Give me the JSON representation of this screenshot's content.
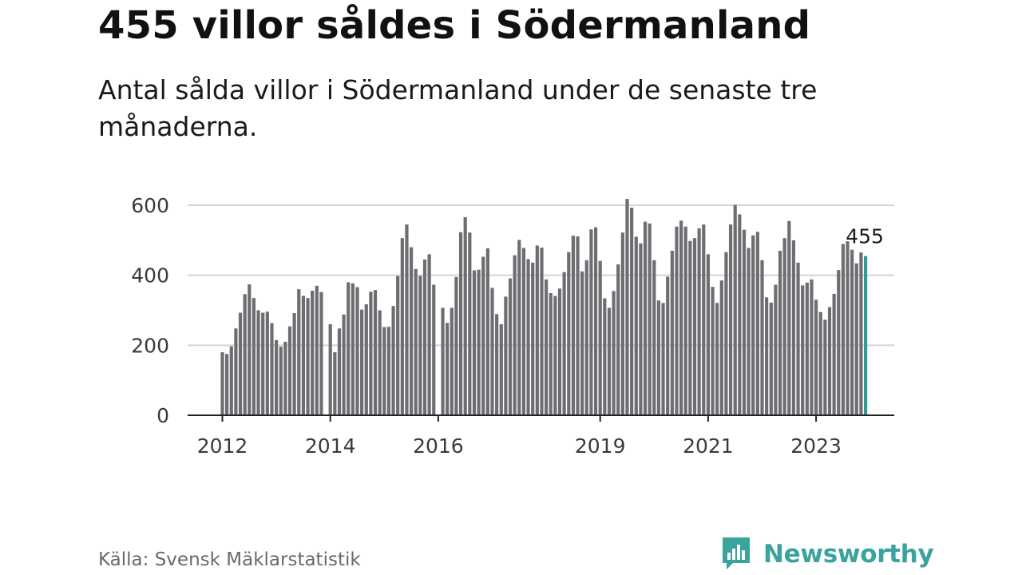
{
  "title": "455 villor såldes i Södermanland",
  "subtitle": "Antal sålda villor i Södermanland under de senaste tre månaderna.",
  "source": "Källa: Svensk Mäklarstatistik",
  "brand": {
    "name": "Newsworthy",
    "color": "#3aa39e",
    "icon": "newsworthy-logo-icon"
  },
  "colors": {
    "bar": "#6e6d72",
    "highlight": "#2a9d96",
    "grid": "#d4d4d4",
    "axis": "#222222"
  },
  "chart_data": {
    "type": "bar",
    "title": "455 villor såldes i Södermanland",
    "subtitle": "Antal sålda villor i Södermanland under de senaste tre månaderna.",
    "xlabel": "",
    "ylabel": "",
    "ylim": [
      0,
      620
    ],
    "yticks": [
      0,
      200,
      400,
      600
    ],
    "ytick_labels": [
      "0",
      "200",
      "400",
      "600"
    ],
    "xticks": [
      {
        "year": 2012,
        "label": "2012"
      },
      {
        "year": 2014,
        "label": "2014"
      },
      {
        "year": 2016,
        "label": "2016"
      },
      {
        "year": 2019,
        "label": "2019"
      },
      {
        "year": 2021,
        "label": "2021"
      },
      {
        "year": 2023,
        "label": "2023"
      }
    ],
    "grid": true,
    "start": "2012-01",
    "end": "2023-12",
    "gaps": [
      "2013-12",
      "2016-01"
    ],
    "values": [
      180,
      175,
      197,
      248,
      293,
      346,
      374,
      335,
      300,
      293,
      296,
      263,
      215,
      196,
      210,
      254,
      292,
      360,
      341,
      335,
      356,
      370,
      352,
      260,
      180,
      248,
      288,
      380,
      377,
      366,
      302,
      317,
      353,
      358,
      300,
      252,
      253,
      312,
      398,
      506,
      545,
      480,
      418,
      398,
      445,
      460,
      373,
      307,
      264,
      307,
      395,
      523,
      566,
      522,
      414,
      416,
      453,
      477,
      364,
      289,
      260,
      339,
      391,
      457,
      501,
      478,
      446,
      436,
      485,
      479,
      388,
      349,
      341,
      362,
      409,
      466,
      513,
      511,
      411,
      443,
      531,
      537,
      441,
      334,
      307,
      355,
      431,
      522,
      618,
      593,
      510,
      491,
      553,
      548,
      443,
      328,
      321,
      396,
      470,
      539,
      556,
      539,
      498,
      506,
      534,
      545,
      460,
      367,
      321,
      385,
      466,
      545,
      601,
      574,
      530,
      478,
      514,
      524,
      443,
      337,
      322,
      373,
      470,
      506,
      555,
      500,
      436,
      371,
      379,
      388,
      330,
      295,
      273,
      309,
      347,
      415,
      489,
      497,
      473,
      434,
      465,
      455
    ],
    "highlight": {
      "date": "2023-12",
      "value": 455,
      "label": "455"
    }
  }
}
